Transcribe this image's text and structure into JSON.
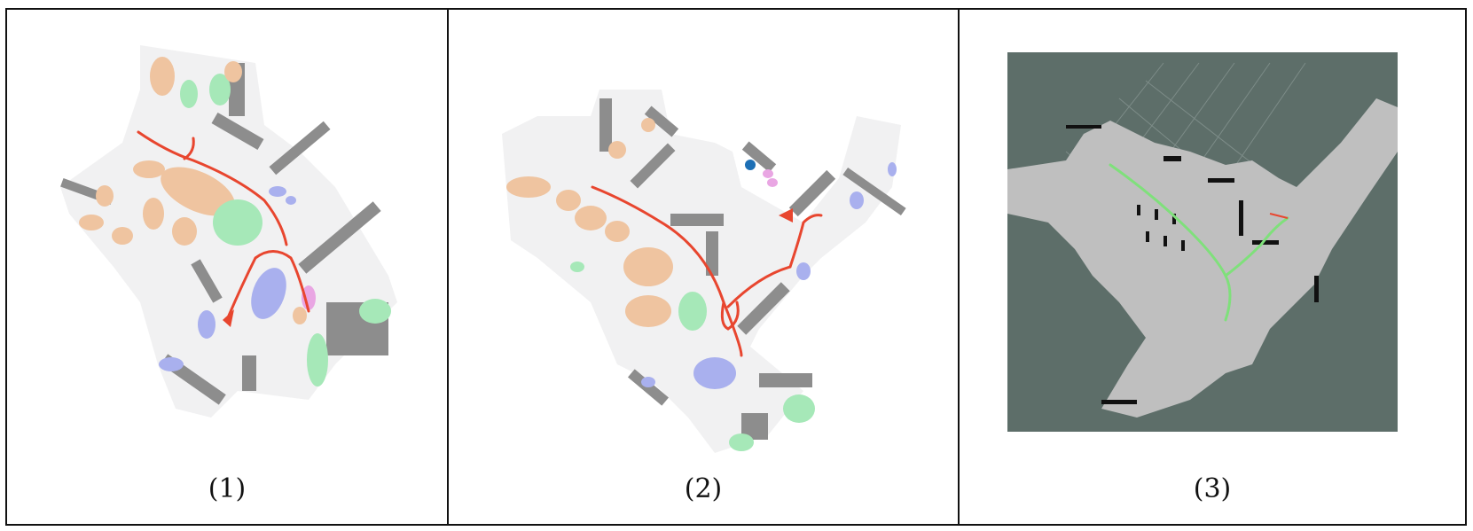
{
  "panels": [
    {
      "caption": "(1)"
    },
    {
      "caption": "(2)"
    },
    {
      "caption": "(3)"
    }
  ],
  "colors": {
    "floor": "#f1f1f2",
    "wall": "#8a8a8a",
    "object_tan": "#efc4a0",
    "object_green": "#a6e8b8",
    "object_blue": "#a9b0ee",
    "object_pink": "#e9a6e3",
    "trajectory_red": "#e8462f",
    "marker_blue": "#1d6fb5",
    "grid_background": "#5d6e69",
    "occupancy_free": "#bfbfbf",
    "occupancy_wall": "#111111",
    "path_green": "#7fe07b"
  }
}
